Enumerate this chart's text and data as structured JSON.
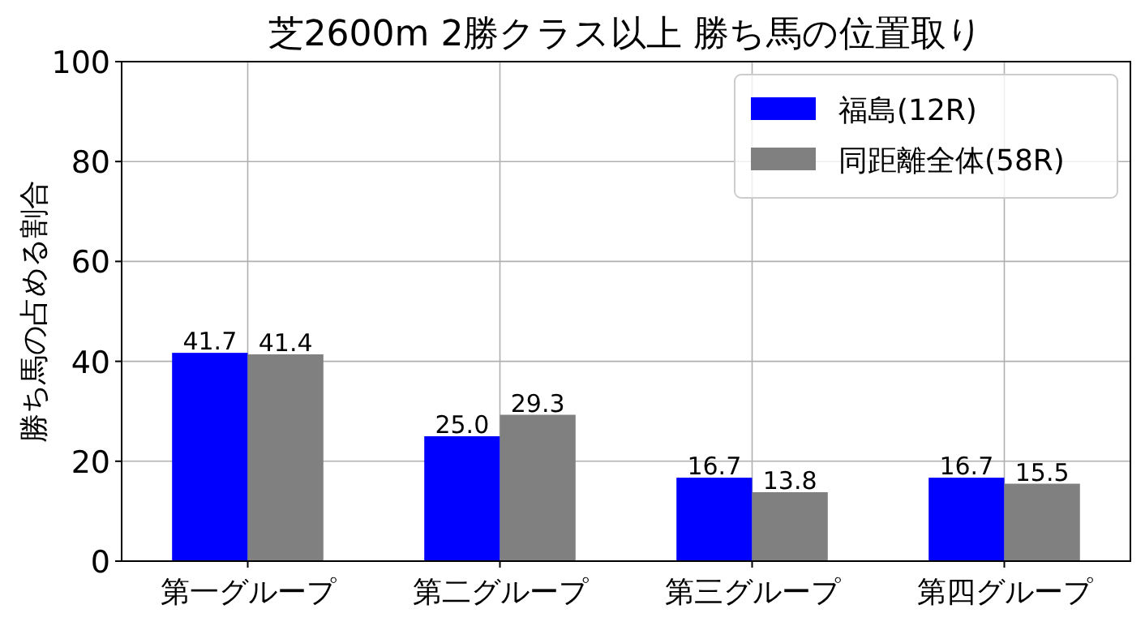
{
  "chart_data": {
    "type": "bar",
    "title": "芝2600m 2勝クラス以上 勝ち馬の位置取り",
    "ylabel": "勝ち馬の占める割合",
    "categories": [
      "第一グループ",
      "第二グループ",
      "第三グループ",
      "第四グループ"
    ],
    "series": [
      {
        "name": "福島(12R)",
        "color": "#0000ff",
        "values": [
          41.7,
          25.0,
          16.7,
          16.7
        ],
        "value_labels": [
          "41.7",
          "25.0",
          "16.7",
          "16.7"
        ]
      },
      {
        "name": "同距離全体(58R)",
        "color": "#808080",
        "values": [
          41.4,
          29.3,
          13.8,
          15.5
        ],
        "value_labels": [
          "41.4",
          "29.3",
          "13.8",
          "15.5"
        ]
      }
    ],
    "ylim": [
      0,
      100
    ],
    "yticks": [
      0,
      20,
      40,
      60,
      80,
      100
    ],
    "grid": true,
    "legend": "top right"
  }
}
